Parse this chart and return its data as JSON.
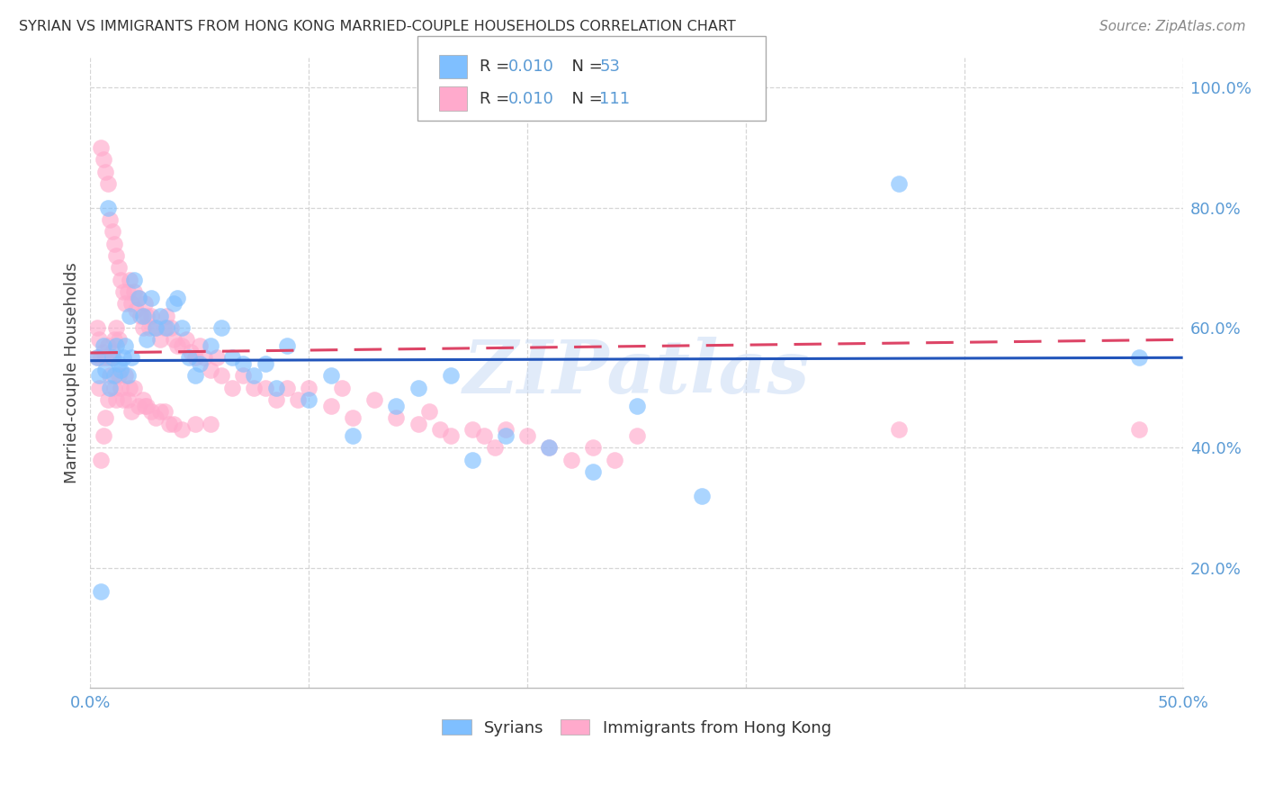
{
  "title": "SYRIAN VS IMMIGRANTS FROM HONG KONG MARRIED-COUPLE HOUSEHOLDS CORRELATION CHART",
  "source": "Source: ZipAtlas.com",
  "ylabel": "Married-couple Households",
  "color_blue": "#7fbfff",
  "color_pink": "#ffaacc",
  "trendline_blue": "#2255bb",
  "trendline_pink": "#dd4466",
  "watermark_text": "ZIPatlas",
  "x_min": 0.0,
  "x_max": 0.5,
  "y_min": 0.0,
  "y_max": 1.05,
  "ytick_vals": [
    0.2,
    0.4,
    0.6,
    0.8,
    1.0
  ],
  "ytick_labels": [
    "20.0%",
    "40.0%",
    "60.0%",
    "80.0%",
    "100.0%"
  ],
  "xtick_vals": [
    0.0,
    0.1,
    0.2,
    0.3,
    0.4,
    0.5
  ],
  "legend_text_color": "#5b9bd5",
  "tick_color": "#5b9bd5",
  "syrian_x": [
    0.003,
    0.004,
    0.005,
    0.006,
    0.007,
    0.008,
    0.009,
    0.01,
    0.011,
    0.012,
    0.013,
    0.014,
    0.015,
    0.016,
    0.017,
    0.018,
    0.019,
    0.02,
    0.022,
    0.024,
    0.026,
    0.028,
    0.03,
    0.032,
    0.035,
    0.038,
    0.04,
    0.042,
    0.045,
    0.048,
    0.05,
    0.055,
    0.06,
    0.065,
    0.07,
    0.075,
    0.08,
    0.085,
    0.09,
    0.1,
    0.11,
    0.12,
    0.14,
    0.15,
    0.165,
    0.175,
    0.19,
    0.21,
    0.23,
    0.25,
    0.28,
    0.37,
    0.48
  ],
  "syrian_y": [
    0.55,
    0.52,
    0.16,
    0.57,
    0.53,
    0.8,
    0.5,
    0.55,
    0.52,
    0.57,
    0.54,
    0.53,
    0.55,
    0.57,
    0.52,
    0.62,
    0.55,
    0.68,
    0.65,
    0.62,
    0.58,
    0.65,
    0.6,
    0.62,
    0.6,
    0.64,
    0.65,
    0.6,
    0.55,
    0.52,
    0.54,
    0.57,
    0.6,
    0.55,
    0.54,
    0.52,
    0.54,
    0.5,
    0.57,
    0.48,
    0.52,
    0.42,
    0.47,
    0.5,
    0.52,
    0.38,
    0.42,
    0.4,
    0.36,
    0.47,
    0.32,
    0.84,
    0.55
  ],
  "hk_x": [
    0.003,
    0.004,
    0.005,
    0.005,
    0.006,
    0.006,
    0.007,
    0.007,
    0.008,
    0.008,
    0.009,
    0.009,
    0.01,
    0.01,
    0.011,
    0.011,
    0.012,
    0.012,
    0.013,
    0.013,
    0.014,
    0.015,
    0.016,
    0.017,
    0.018,
    0.019,
    0.02,
    0.021,
    0.022,
    0.023,
    0.024,
    0.025,
    0.026,
    0.027,
    0.028,
    0.03,
    0.032,
    0.034,
    0.035,
    0.037,
    0.038,
    0.04,
    0.042,
    0.044,
    0.046,
    0.048,
    0.05,
    0.052,
    0.055,
    0.058,
    0.06,
    0.065,
    0.07,
    0.075,
    0.08,
    0.085,
    0.09,
    0.095,
    0.1,
    0.11,
    0.115,
    0.12,
    0.13,
    0.14,
    0.15,
    0.155,
    0.16,
    0.165,
    0.175,
    0.18,
    0.185,
    0.19,
    0.2,
    0.21,
    0.22,
    0.23,
    0.24,
    0.25,
    0.003,
    0.004,
    0.005,
    0.006,
    0.007,
    0.008,
    0.009,
    0.01,
    0.011,
    0.012,
    0.013,
    0.014,
    0.015,
    0.016,
    0.017,
    0.018,
    0.019,
    0.02,
    0.022,
    0.024,
    0.025,
    0.026,
    0.028,
    0.03,
    0.032,
    0.034,
    0.036,
    0.038,
    0.042,
    0.048,
    0.055,
    0.37,
    0.48
  ],
  "hk_y": [
    0.6,
    0.58,
    0.9,
    0.55,
    0.88,
    0.56,
    0.86,
    0.55,
    0.84,
    0.57,
    0.78,
    0.55,
    0.76,
    0.56,
    0.74,
    0.58,
    0.72,
    0.6,
    0.7,
    0.58,
    0.68,
    0.66,
    0.64,
    0.66,
    0.68,
    0.64,
    0.66,
    0.63,
    0.65,
    0.62,
    0.6,
    0.64,
    0.62,
    0.6,
    0.62,
    0.6,
    0.58,
    0.6,
    0.62,
    0.6,
    0.58,
    0.57,
    0.57,
    0.58,
    0.56,
    0.55,
    0.57,
    0.55,
    0.53,
    0.55,
    0.52,
    0.5,
    0.52,
    0.5,
    0.5,
    0.48,
    0.5,
    0.48,
    0.5,
    0.47,
    0.5,
    0.45,
    0.48,
    0.45,
    0.44,
    0.46,
    0.43,
    0.42,
    0.43,
    0.42,
    0.4,
    0.43,
    0.42,
    0.4,
    0.38,
    0.4,
    0.38,
    0.42,
    0.55,
    0.5,
    0.38,
    0.42,
    0.45,
    0.48,
    0.52,
    0.55,
    0.5,
    0.48,
    0.52,
    0.5,
    0.48,
    0.52,
    0.48,
    0.5,
    0.46,
    0.5,
    0.47,
    0.48,
    0.47,
    0.47,
    0.46,
    0.45,
    0.46,
    0.46,
    0.44,
    0.44,
    0.43,
    0.44,
    0.44,
    0.43,
    0.43
  ]
}
